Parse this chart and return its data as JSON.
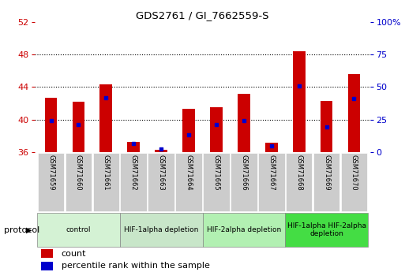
{
  "title": "GDS2761 / GI_7662559-S",
  "samples": [
    "GSM71659",
    "GSM71660",
    "GSM71661",
    "GSM71662",
    "GSM71663",
    "GSM71664",
    "GSM71665",
    "GSM71666",
    "GSM71667",
    "GSM71668",
    "GSM71669",
    "GSM71670"
  ],
  "counts": [
    42.7,
    42.2,
    44.3,
    37.3,
    36.3,
    41.3,
    41.5,
    43.2,
    37.2,
    48.4,
    42.3,
    45.6
  ],
  "percentile_ranks": [
    24.5,
    21.5,
    41.5,
    6.5,
    2.5,
    13.5,
    21.5,
    24.5,
    5.0,
    51.0,
    19.5,
    41.0
  ],
  "ylim_left": [
    36,
    52
  ],
  "ylim_right": [
    0,
    100
  ],
  "yticks_left": [
    36,
    40,
    44,
    48,
    52
  ],
  "yticks_right": [
    0,
    25,
    50,
    75,
    100
  ],
  "bar_color": "#cc0000",
  "dot_color": "#0000cc",
  "bar_width": 0.45,
  "groups": [
    {
      "label": "control",
      "start": 0,
      "end": 3,
      "color": "#d4f2d4"
    },
    {
      "label": "HIF-1alpha depletion",
      "start": 3,
      "end": 6,
      "color": "#c8e6c9"
    },
    {
      "label": "HIF-2alpha depletion",
      "start": 6,
      "end": 9,
      "color": "#b2f0b2"
    },
    {
      "label": "HIF-1alpha HIF-2alpha\ndepletion",
      "start": 9,
      "end": 12,
      "color": "#44dd44"
    }
  ],
  "protocol_label": "protocol",
  "legend_count_label": "count",
  "legend_pct_label": "percentile rank within the sample",
  "bar_color_legend": "#cc0000",
  "dot_color_legend": "#0000cc",
  "background_color": "#ffffff",
  "xtick_bg": "#cccccc",
  "plot_bg": "#ffffff",
  "gridline_color": "#000000",
  "left_axis_color": "#cc0000",
  "right_axis_color": "#0000cc"
}
